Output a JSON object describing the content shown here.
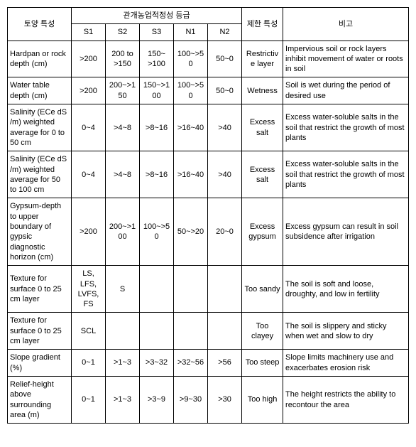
{
  "header": {
    "soilChar": "토양 특성",
    "gradeGroup": "관개농업적정성 등급",
    "grades": [
      "S1",
      "S2",
      "S3",
      "N1",
      "N2"
    ],
    "limiting": "제한\n특성",
    "remark": "비고"
  },
  "rows": [
    {
      "char": "Hardpan or rock depth (cm)",
      "v": [
        ">200",
        "200 to\n>150",
        "150~\n>100",
        "100~>5\n0",
        "50~0"
      ],
      "limit": "Restrictive layer",
      "remark": "Impervious   soil or rock layers inhibit movement  of water or  roots  in  soil"
    },
    {
      "char": "Water table depth (cm)",
      "v": [
        ">200",
        "200~>1\n50",
        "150~>1\n00",
        "100~>5\n0",
        "50~0"
      ],
      "limit": "Wetness",
      "remark": "Soil  is  wet  during the  period  of  desired use"
    },
    {
      "char": "Salinity (ECe dS /m) weighted average for 0 to 50   cm",
      "v": [
        "0~4",
        ">4~8",
        ">8~16",
        ">16~40",
        ">40"
      ],
      "limit": "Excess salt",
      "remark": "Excess water-soluble salts in the soil that restrict  the   growth of  most  plants"
    },
    {
      "char": "Salinity (ECe dS /m) weighted average for 50 to    100 cm",
      "v": [
        "0~4",
        ">4~8",
        ">8~16",
        ">16~40",
        ">40"
      ],
      "limit": "Excess salt",
      "remark": "Excess water-soluble salts in the soil that restrict  the   growth of  most  plants"
    },
    {
      "char": "Gypsum-depth to upper boundary of gypsic diagnostic horizon    (cm)",
      "v": [
        ">200",
        "200~>1\n00",
        "100~>5\n0",
        "50~>20",
        "20~0"
      ],
      "limit": "Excess gypsum",
      "remark": "Excess gypsum can result  in  soil subsidence  after irrigation"
    },
    {
      "char": "Texture for surface 0 to 25 cm layer",
      "v": [
        "LS, LFS, LVFS, FS",
        "S",
        "",
        "",
        ""
      ],
      "limit": "Too sandy",
      "remark": "The  soil  is  soft  and loose,  droughty,  and low    in  fertility"
    },
    {
      "char": "Texture for surface 0 to 25 cm layer",
      "v": [
        "SCL",
        "",
        "",
        "",
        ""
      ],
      "limit": "Too clayey",
      "remark": "The  soil  is  slippery and  sticky  when  wet and  slow  to  dry"
    },
    {
      "char": "Slope gradient  (%)",
      "v": [
        "0~1",
        ">1~3",
        ">3~32",
        ">32~56",
        ">56"
      ],
      "limit": "Too steep",
      "remark": "Slope  limits machinery  use  and exacerbates  erosion risk"
    },
    {
      "char": "Relief-height above surrounding area (m)",
      "v": [
        "0~1",
        ">1~3",
        ">3~9",
        ">9~30",
        ">30"
      ],
      "limit": "Too high",
      "remark": "The  height  restricts the  ability  to recontour  the  area"
    }
  ]
}
